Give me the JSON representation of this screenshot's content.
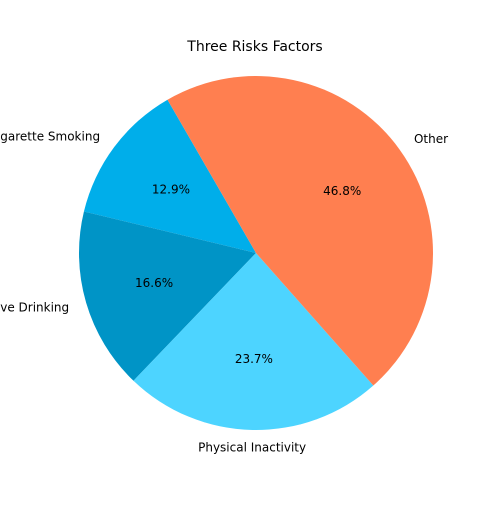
{
  "chart_data": {
    "type": "pie",
    "title": "Three Risks Factors",
    "labels": [
      "Cigarette Smoking",
      "Excessive Drinking",
      "Physical Inactivity",
      "Other"
    ],
    "values": [
      12.9,
      16.6,
      23.7,
      46.8
    ],
    "percent_labels": [
      "12.9%",
      "16.6%",
      "23.7%",
      "46.8%"
    ],
    "colors": [
      "#00aeea",
      "#0094c6",
      "#4dd4ff",
      "#ff7f50"
    ],
    "start_angle_deg": 120,
    "direction": "counterclockwise",
    "legend": "none"
  }
}
